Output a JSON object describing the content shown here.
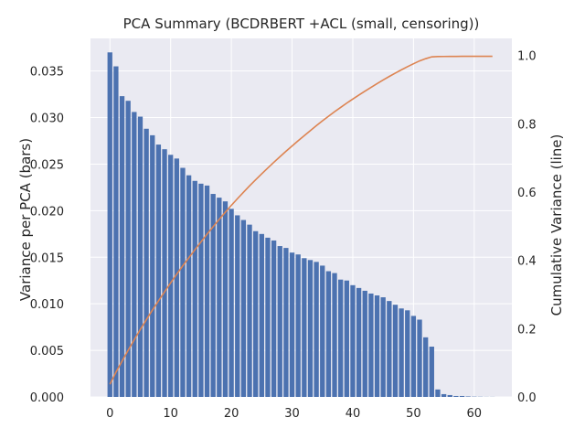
{
  "chart_data": {
    "type": "bar",
    "title": "PCA Summary (BCDRBERT +ACL (small, censoring))",
    "xlabel": "",
    "ylabel": "Variance per PCA (bars)",
    "y2label": "Cumulative Variance (line)",
    "xlim": [
      -3.2,
      66.2
    ],
    "ylim": [
      0,
      0.0385
    ],
    "y2lim": [
      0,
      1.05
    ],
    "xticks": [
      "0",
      "10",
      "20",
      "30",
      "40",
      "50",
      "60"
    ],
    "yticks": [
      "0.000",
      "0.005",
      "0.010",
      "0.015",
      "0.020",
      "0.025",
      "0.030",
      "0.035"
    ],
    "y2ticks": [
      "0.0",
      "0.2",
      "0.4",
      "0.6",
      "0.8",
      "1.0"
    ],
    "grid": true,
    "colors": {
      "bars": "#4c72b0",
      "line": "#dd8452",
      "background": "#eaeaf2",
      "grid": "#ffffff"
    },
    "series": [
      {
        "name": "Variance per PCA",
        "type": "bar",
        "x": [
          0,
          1,
          2,
          3,
          4,
          5,
          6,
          7,
          8,
          9,
          10,
          11,
          12,
          13,
          14,
          15,
          16,
          17,
          18,
          19,
          20,
          21,
          22,
          23,
          24,
          25,
          26,
          27,
          28,
          29,
          30,
          31,
          32,
          33,
          34,
          35,
          36,
          37,
          38,
          39,
          40,
          41,
          42,
          43,
          44,
          45,
          46,
          47,
          48,
          49,
          50,
          51,
          52,
          53,
          54,
          55,
          56,
          57,
          58,
          59,
          60,
          61,
          62,
          63
        ],
        "values": [
          0.037,
          0.0355,
          0.0323,
          0.0318,
          0.0306,
          0.0301,
          0.0288,
          0.0281,
          0.0271,
          0.0266,
          0.026,
          0.0256,
          0.0246,
          0.0238,
          0.0232,
          0.0229,
          0.0227,
          0.0218,
          0.0214,
          0.021,
          0.0202,
          0.0195,
          0.019,
          0.0185,
          0.0178,
          0.0175,
          0.0171,
          0.0168,
          0.0162,
          0.016,
          0.0155,
          0.0153,
          0.0149,
          0.0147,
          0.0145,
          0.0141,
          0.0135,
          0.0133,
          0.0126,
          0.0125,
          0.012,
          0.0117,
          0.0114,
          0.0111,
          0.0109,
          0.0107,
          0.0103,
          0.0099,
          0.0095,
          0.0093,
          0.0087,
          0.0083,
          0.0064,
          0.0054,
          0.0008,
          0.0003,
          0.0002,
          0.0001,
          0.0001,
          5e-05,
          3e-05,
          2e-05,
          1e-05,
          1e-05
        ]
      },
      {
        "name": "Cumulative Variance",
        "type": "line",
        "x": [
          0,
          1,
          2,
          3,
          4,
          5,
          6,
          7,
          8,
          9,
          10,
          11,
          12,
          13,
          14,
          15,
          16,
          17,
          18,
          19,
          20,
          21,
          22,
          23,
          24,
          25,
          26,
          27,
          28,
          29,
          30,
          31,
          32,
          33,
          34,
          35,
          36,
          37,
          38,
          39,
          40,
          41,
          42,
          43,
          44,
          45,
          46,
          47,
          48,
          49,
          50,
          51,
          52,
          53,
          54,
          55,
          56,
          57,
          58,
          59,
          60,
          61,
          62,
          63
        ],
        "values": [
          0.037,
          0.0725,
          0.1048,
          0.1366,
          0.1672,
          0.1973,
          0.2261,
          0.2542,
          0.2813,
          0.3079,
          0.3339,
          0.3595,
          0.3841,
          0.4079,
          0.4311,
          0.454,
          0.4767,
          0.4985,
          0.5199,
          0.5409,
          0.5611,
          0.5806,
          0.5996,
          0.6181,
          0.6359,
          0.6534,
          0.6705,
          0.6873,
          0.7035,
          0.7195,
          0.735,
          0.7503,
          0.7652,
          0.7799,
          0.7944,
          0.8085,
          0.822,
          0.8353,
          0.8479,
          0.8604,
          0.8724,
          0.8841,
          0.8955,
          0.9066,
          0.9175,
          0.9282,
          0.9385,
          0.9484,
          0.9579,
          0.9672,
          0.9759,
          0.9842,
          0.9906,
          0.996,
          0.9968,
          0.9971,
          0.9973,
          0.9974,
          0.9975,
          0.9976,
          0.9976,
          0.9976,
          0.9976,
          0.9976
        ]
      }
    ]
  }
}
